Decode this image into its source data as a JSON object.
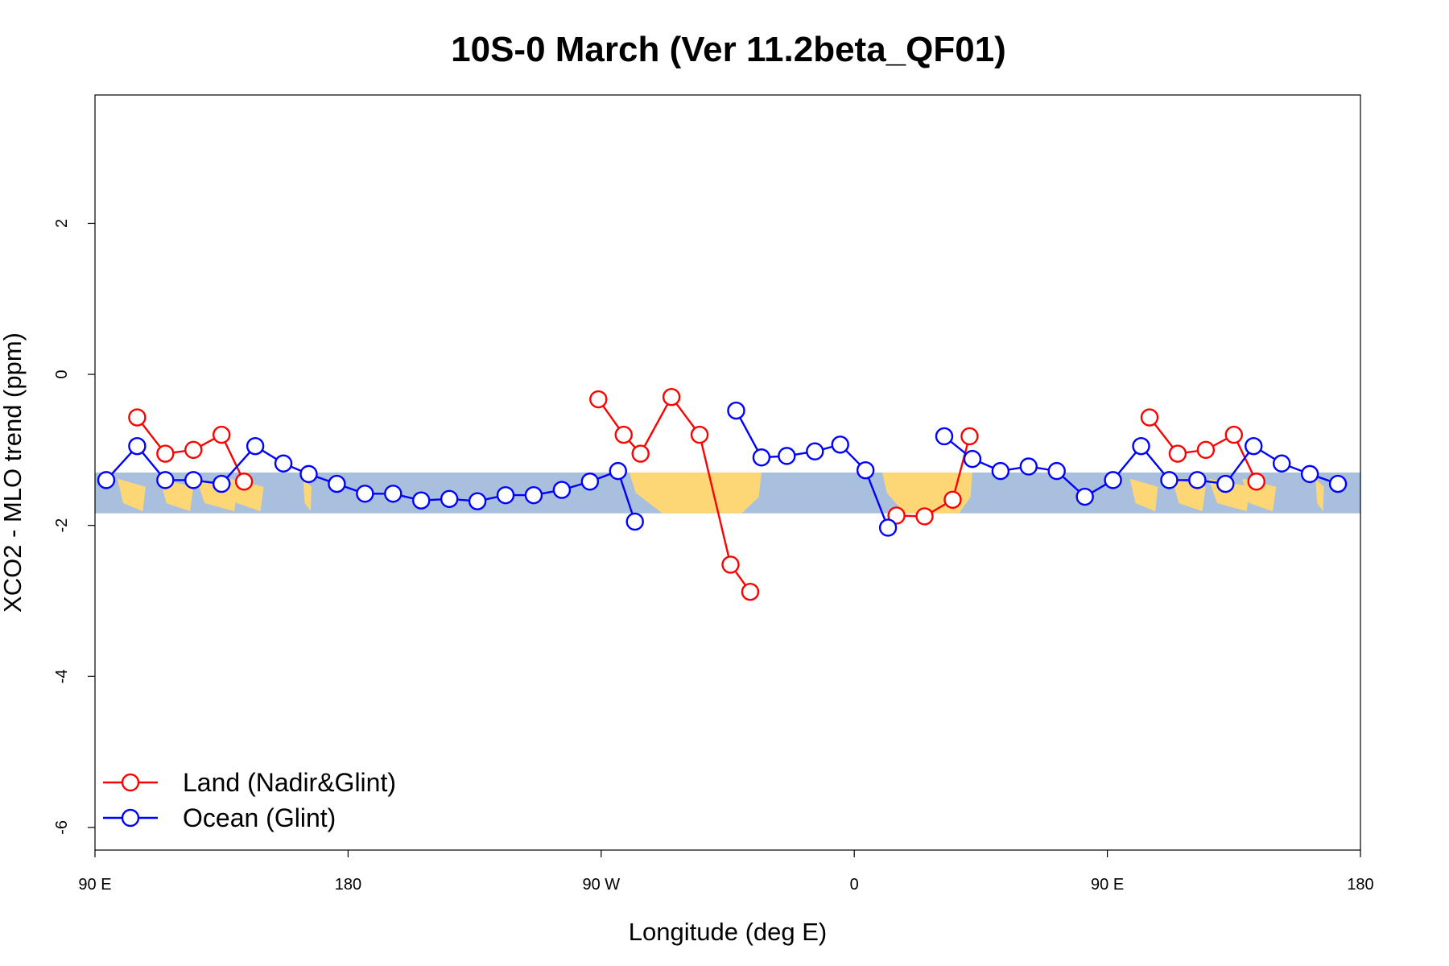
{
  "chart_data": {
    "type": "line",
    "title": "10S-0 March (Ver 11.2beta_QF01)",
    "xlabel": "Longitude (deg E)",
    "ylabel": "XCO2 - MLO trend (ppm)",
    "xlim": [
      90,
      540
    ],
    "ylim": [
      -6.3,
      3.7
    ],
    "x_ticks": [
      {
        "value": 90,
        "label": "90 E"
      },
      {
        "value": 180,
        "label": "180"
      },
      {
        "value": 270,
        "label": "90 W"
      },
      {
        "value": 360,
        "label": "0"
      },
      {
        "value": 450,
        "label": "90 E"
      },
      {
        "value": 540,
        "label": "180"
      }
    ],
    "y_ticks": [
      {
        "value": 2,
        "label": "2"
      },
      {
        "value": 0,
        "label": "0"
      },
      {
        "value": -2,
        "label": "-2"
      },
      {
        "value": -4,
        "label": "-4"
      },
      {
        "value": -6,
        "label": "-6"
      }
    ],
    "background_band": {
      "y_range": [
        -1.84,
        -1.3
      ],
      "ocean_color": "#a8bfde",
      "land_color": "#fdd775"
    },
    "land_segments": [
      {
        "x": [
          98,
          108
        ],
        "type": "island"
      },
      {
        "x": [
          113,
          125
        ],
        "type": "island"
      },
      {
        "x": [
          126,
          141
        ],
        "type": "island"
      },
      {
        "x": [
          138,
          150
        ],
        "type": "island"
      },
      {
        "x": [
          164,
          167
        ],
        "type": "island"
      },
      {
        "x": [
          280,
          327
        ],
        "type": "continent"
      },
      {
        "x": [
          370,
          402
        ],
        "type": "continent"
      },
      {
        "x": [
          458,
          468
        ],
        "type": "island"
      },
      {
        "x": [
          473,
          485
        ],
        "type": "island"
      },
      {
        "x": [
          486,
          501
        ],
        "type": "island"
      },
      {
        "x": [
          498,
          510
        ],
        "type": "island"
      },
      {
        "x": [
          524,
          527
        ],
        "type": "island"
      }
    ],
    "series": [
      {
        "name": "Land (Nadir&Glint)",
        "color": "#ff0000",
        "segments": [
          {
            "x": [
              105,
              115,
              125,
              135,
              143
            ],
            "y": [
              -0.57,
              -1.05,
              -1.0,
              -0.8,
              -1.42
            ]
          },
          {
            "x": [
              269,
              278,
              284,
              295,
              305,
              316,
              323
            ],
            "y": [
              -0.33,
              -0.8,
              -1.05,
              -0.3,
              -0.8,
              -2.52,
              -2.88
            ]
          },
          {
            "x": [
              375,
              385,
              395,
              401
            ],
            "y": [
              -1.87,
              -1.88,
              -1.66,
              -0.82
            ]
          },
          {
            "x": [
              465,
              475,
              485,
              495,
              503
            ],
            "y": [
              -0.57,
              -1.05,
              -1.0,
              -0.8,
              -1.42
            ]
          }
        ]
      },
      {
        "name": "Ocean (Glint)",
        "color": "#0000ff",
        "segments": [
          {
            "x": [
              94,
              105,
              115,
              125,
              135,
              147,
              157,
              166,
              176,
              186,
              196,
              206,
              216,
              226,
              236,
              246,
              256,
              266,
              276,
              282
            ],
            "y": [
              -1.4,
              -0.95,
              -1.4,
              -1.4,
              -1.45,
              -0.95,
              -1.18,
              -1.32,
              -1.45,
              -1.58,
              -1.58,
              -1.67,
              -1.65,
              -1.68,
              -1.6,
              -1.6,
              -1.53,
              -1.42,
              -1.28,
              -1.95
            ]
          },
          {
            "x": [
              318,
              327,
              336,
              346,
              355,
              364,
              372
            ],
            "y": [
              -0.48,
              -1.1,
              -1.08,
              -1.02,
              -0.93,
              -1.27,
              -2.03
            ]
          },
          {
            "x": [
              392,
              402,
              412,
              422,
              432,
              442,
              452,
              462,
              472,
              482,
              492,
              502,
              512,
              522,
              532
            ],
            "y": [
              -0.82,
              -1.12,
              -1.28,
              -1.22,
              -1.28,
              -1.62,
              -1.4,
              -0.95,
              -1.4,
              -1.4,
              -1.45,
              -0.95,
              -1.18,
              -1.32,
              -1.45
            ]
          }
        ]
      }
    ],
    "legend": {
      "position": "bottom-left",
      "entries": [
        "Land (Nadir&Glint)",
        "Ocean (Glint)"
      ]
    }
  }
}
